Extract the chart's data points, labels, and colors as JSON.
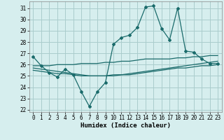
{
  "xlabel": "Humidex (Indice chaleur)",
  "ylabel": "",
  "bg_color": "#d6eeee",
  "grid_color": "#aacccc",
  "line_color": "#1a6b6b",
  "xlim": [
    -0.5,
    23.5
  ],
  "ylim": [
    21.8,
    31.6
  ],
  "xticks": [
    0,
    1,
    2,
    3,
    4,
    5,
    6,
    7,
    8,
    9,
    10,
    11,
    12,
    13,
    14,
    15,
    16,
    17,
    18,
    19,
    20,
    21,
    22,
    23
  ],
  "yticks": [
    22,
    23,
    24,
    25,
    26,
    27,
    28,
    29,
    30,
    31
  ],
  "series1": [
    26.7,
    25.9,
    25.3,
    24.9,
    25.6,
    25.1,
    23.6,
    22.3,
    23.6,
    24.4,
    27.8,
    28.4,
    28.6,
    29.3,
    31.1,
    31.2,
    29.2,
    28.2,
    31.0,
    27.2,
    27.1,
    26.5,
    26.1,
    26.1
  ],
  "series2": [
    25.9,
    25.9,
    25.9,
    26.0,
    26.0,
    26.0,
    26.1,
    26.1,
    26.1,
    26.2,
    26.2,
    26.3,
    26.3,
    26.4,
    26.5,
    26.5,
    26.5,
    26.5,
    26.6,
    26.6,
    26.7,
    26.7,
    26.8,
    26.8
  ],
  "series3": [
    25.7,
    25.6,
    25.5,
    25.4,
    25.3,
    25.2,
    25.1,
    25.0,
    25.0,
    25.0,
    25.1,
    25.1,
    25.2,
    25.3,
    25.4,
    25.5,
    25.6,
    25.7,
    25.8,
    25.9,
    26.0,
    26.1,
    26.2,
    26.3
  ],
  "series4": [
    25.5,
    25.4,
    25.3,
    25.2,
    25.2,
    25.1,
    25.0,
    25.0,
    25.0,
    25.0,
    25.0,
    25.1,
    25.1,
    25.2,
    25.3,
    25.4,
    25.5,
    25.6,
    25.7,
    25.7,
    25.8,
    25.9,
    25.9,
    26.0
  ]
}
